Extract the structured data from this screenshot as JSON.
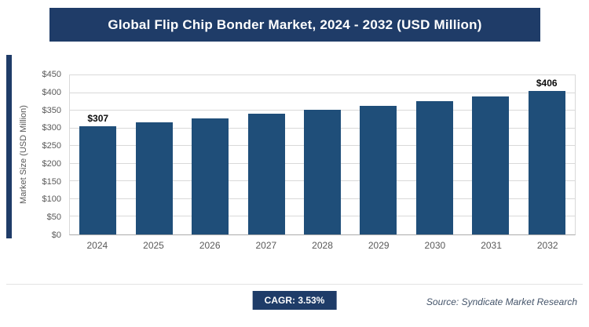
{
  "title": "Global Flip Chip Bonder Market, 2024 - 2032 (USD Million)",
  "colors": {
    "header_bg": "#1F3C68",
    "bar": "#1F4E79",
    "badge_bg": "#1F3C68",
    "grid": "#D9D9D9",
    "axis_text": "#595959",
    "source_text": "#44546A"
  },
  "chart_data": {
    "type": "bar",
    "title": "Global Flip Chip Bonder Market, 2024 - 2032 (USD Million)",
    "categories": [
      "2024",
      "2025",
      "2026",
      "2027",
      "2028",
      "2029",
      "2030",
      "2031",
      "2032"
    ],
    "values": [
      307,
      318,
      329,
      341,
      352,
      364,
      377,
      391,
      406
    ],
    "bar_value_labels": [
      "$307",
      "",
      "",
      "",
      "",
      "",
      "",
      "",
      "$406"
    ],
    "xlabel": "",
    "ylabel": "Market Size (USD Million)",
    "ylim": [
      0,
      450
    ],
    "ytick_step": 50,
    "ytick_labels": [
      "$0",
      "$50",
      "$100",
      "$150",
      "$200",
      "$250",
      "$300",
      "$350",
      "$400",
      "$450"
    ],
    "grid": true,
    "legend": false
  },
  "footer": {
    "cagr_label": "CAGR: 3.53%",
    "source": "Source: Syndicate Market Research"
  }
}
